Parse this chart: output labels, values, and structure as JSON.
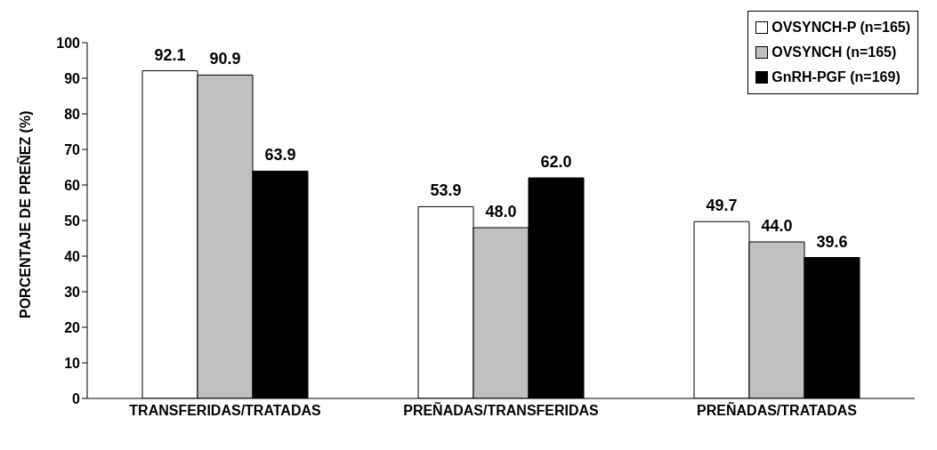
{
  "chart_data": {
    "type": "bar",
    "ylabel": "PORCENTAJE DE PREÑEZ (%)",
    "categories": [
      "TRANSFERIDAS/TRATADAS",
      "PREÑADAS/TRANSFERIDAS",
      "PREÑADAS/TRATADAS"
    ],
    "series": [
      {
        "name": "OVSYNCH-P (n=165)",
        "color": "#ffffff",
        "values": [
          92.1,
          53.9,
          49.7
        ],
        "value_labels": [
          "92.1",
          "53.9",
          "49.7"
        ]
      },
      {
        "name": "OVSYNCH (n=165)",
        "color": "#c0c0c0",
        "values": [
          90.9,
          48.0,
          44.0
        ],
        "value_labels": [
          "90.9",
          "48.0",
          "44.0"
        ]
      },
      {
        "name": "GnRH-PGF (n=169)",
        "color": "#000000",
        "values": [
          63.9,
          62.0,
          39.6
        ],
        "value_labels": [
          "63.9",
          "62.0",
          "39.6"
        ]
      }
    ],
    "ylim": [
      0,
      100
    ],
    "yticks": [
      0,
      10,
      20,
      30,
      40,
      50,
      60,
      70,
      80,
      90,
      100
    ],
    "grid": false,
    "legend": "top right"
  }
}
